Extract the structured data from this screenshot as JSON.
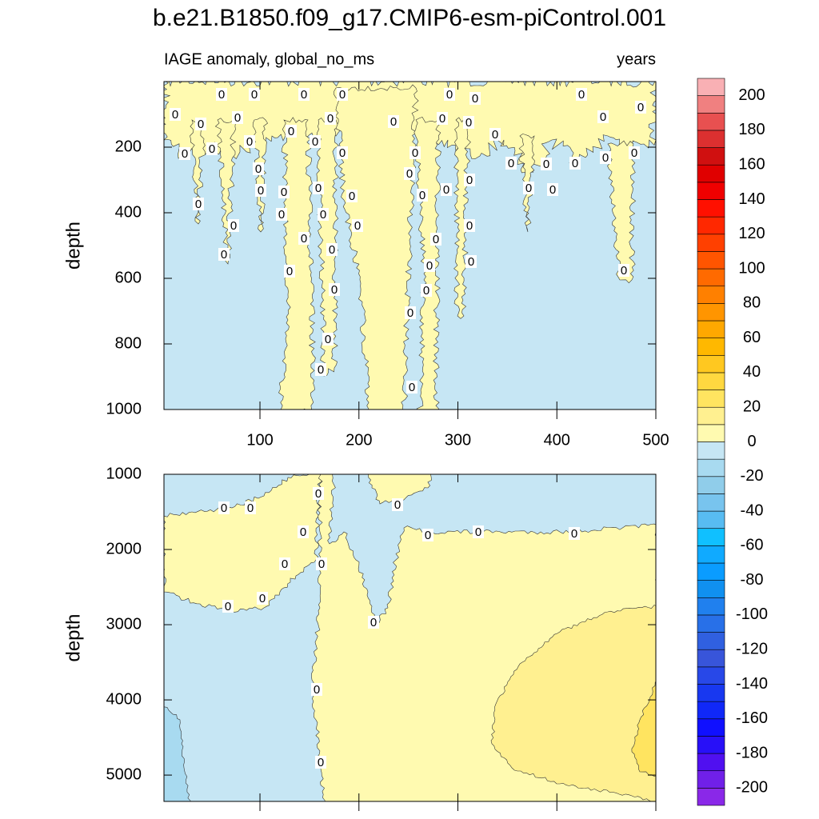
{
  "chart_data": {
    "type": "contour",
    "title": "b.e21.B1850.f09_g17.CMIP6-esm-piControl.001",
    "subtitle_left": "IAGE anomaly, global_no_ms",
    "subtitle_right": "years",
    "contour_label": "0",
    "xlim": [
      3,
      500
    ],
    "xticks": [
      100,
      200,
      300,
      400,
      500
    ],
    "panels": [
      {
        "ylabel": "depth",
        "ylim": [
          0,
          1000
        ],
        "yticks": [
          200,
          400,
          600,
          800,
          1000
        ],
        "show_xtick_labels": true
      },
      {
        "ylabel": "depth",
        "ylim": [
          1000,
          5350
        ],
        "yticks": [
          1000,
          2000,
          3000,
          4000,
          5000
        ],
        "show_xtick_labels": false
      }
    ],
    "colorbar": {
      "levels": [
        -200,
        -190,
        -180,
        -170,
        -160,
        -150,
        -140,
        -130,
        -120,
        -110,
        -100,
        -90,
        -80,
        -70,
        -60,
        -50,
        -40,
        -30,
        -20,
        -10,
        0,
        10,
        20,
        30,
        40,
        50,
        60,
        70,
        80,
        90,
        100,
        110,
        120,
        130,
        140,
        150,
        160,
        170,
        180,
        190,
        200
      ],
      "colors": [
        "#8a28e8",
        "#7020e8",
        "#5010f0",
        "#2810f8",
        "#1010ff",
        "#1028f8",
        "#1838f0",
        "#2848e8",
        "#3855da",
        "#3060e0",
        "#2870e8",
        "#2080ee",
        "#1090f0",
        "#0a9cff",
        "#10aaff",
        "#10c0ff",
        "#58bcf2",
        "#78c4ee",
        "#90cdea",
        "#a8daf0",
        "#c6e6f4",
        "#fffab0",
        "#fff090",
        "#ffe460",
        "#ffd840",
        "#ffc820",
        "#ffb800",
        "#ffa800",
        "#ff9500",
        "#ff8000",
        "#ff6a00",
        "#ff5500",
        "#ff4000",
        "#ff2800",
        "#ff1000",
        "#f00000",
        "#e00000",
        "#d01010",
        "#dc3030",
        "#e85050",
        "#f08080",
        "#f9b0b4"
      ]
    }
  }
}
